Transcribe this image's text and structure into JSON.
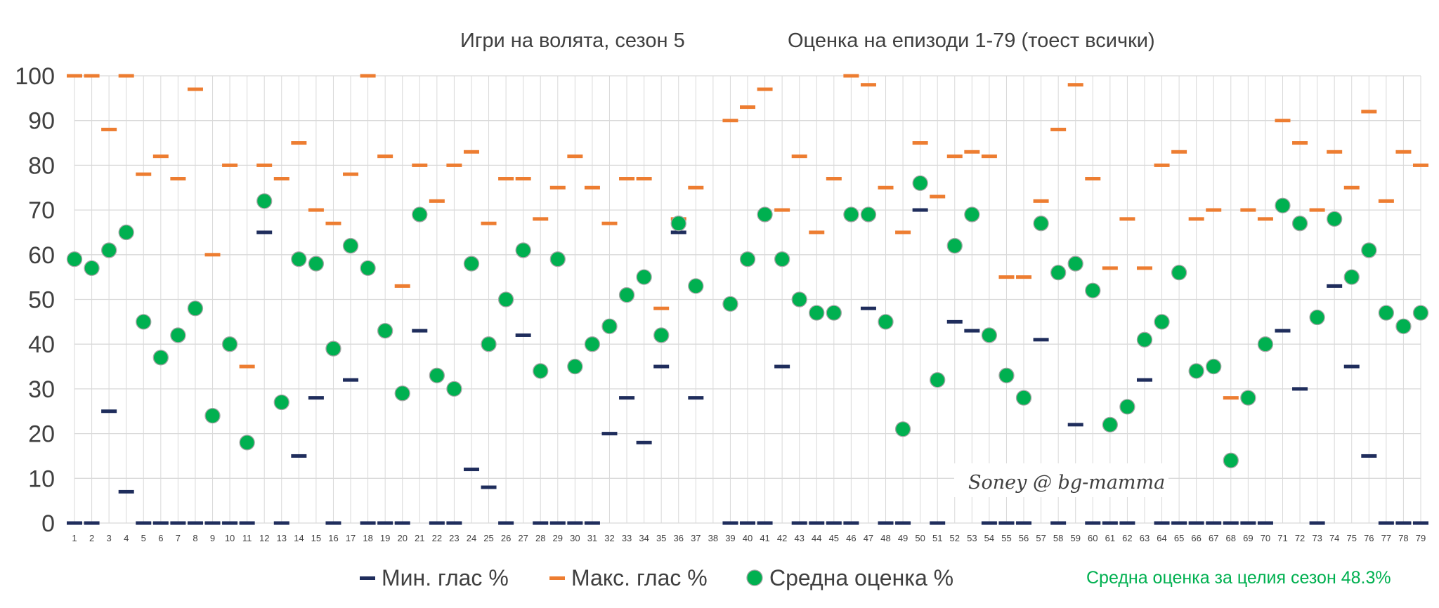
{
  "colors": {
    "min": "#1f2d5c",
    "max": "#ed7d31",
    "avg": "#00b050",
    "grid": "#d9d9d9",
    "text": "#404040",
    "season_note": "#00b050"
  },
  "chart_data": {
    "type": "scatter",
    "title_left": "Игри на волята, сезон 5",
    "title_right": "Оценка на епизоди 1-79 (тоест всички)",
    "ylim": [
      0,
      100
    ],
    "yticks": [
      0,
      10,
      20,
      30,
      40,
      50,
      60,
      70,
      80,
      90,
      100
    ],
    "grid": true,
    "legend_position": "bottom",
    "x": [
      1,
      2,
      3,
      4,
      5,
      6,
      7,
      8,
      9,
      10,
      11,
      12,
      13,
      14,
      15,
      16,
      17,
      18,
      19,
      20,
      21,
      22,
      23,
      24,
      25,
      26,
      27,
      28,
      29,
      30,
      31,
      32,
      33,
      34,
      35,
      36,
      37,
      38,
      39,
      40,
      41,
      42,
      43,
      44,
      45,
      46,
      47,
      48,
      49,
      50,
      51,
      52,
      53,
      54,
      55,
      56,
      57,
      58,
      59,
      60,
      61,
      62,
      63,
      64,
      65,
      66,
      67,
      68,
      69,
      70,
      71,
      72,
      73,
      74,
      75,
      76,
      77,
      78,
      79
    ],
    "series": [
      {
        "name": "Мин. глас %",
        "marker": "dash",
        "values": [
          0,
          0,
          25,
          7,
          0,
          0,
          0,
          0,
          0,
          0,
          0,
          65,
          0,
          15,
          28,
          0,
          32,
          0,
          0,
          0,
          43,
          0,
          0,
          12,
          8,
          0,
          42,
          0,
          0,
          0,
          0,
          20,
          28,
          18,
          35,
          65,
          28,
          null,
          0,
          0,
          0,
          35,
          0,
          0,
          0,
          0,
          48,
          0,
          0,
          70,
          0,
          45,
          43,
          0,
          0,
          0,
          41,
          0,
          22,
          0,
          0,
          0,
          32,
          0,
          0,
          0,
          0,
          0,
          0,
          0,
          43,
          30,
          0,
          53,
          35,
          15,
          0,
          0,
          0
        ]
      },
      {
        "name": "Макс. глас %",
        "marker": "dash",
        "values": [
          100,
          100,
          88,
          100,
          78,
          82,
          77,
          97,
          60,
          80,
          35,
          80,
          77,
          85,
          70,
          67,
          78,
          100,
          82,
          53,
          80,
          72,
          80,
          83,
          67,
          77,
          77,
          68,
          75,
          82,
          75,
          67,
          77,
          77,
          48,
          68,
          75,
          null,
          90,
          93,
          97,
          70,
          82,
          65,
          77,
          100,
          98,
          75,
          65,
          85,
          73,
          82,
          83,
          82,
          55,
          55,
          72,
          88,
          98,
          77,
          57,
          68,
          57,
          80,
          83,
          68,
          70,
          28,
          70,
          68,
          90,
          85,
          70,
          83,
          75,
          92,
          72,
          83,
          80
        ]
      },
      {
        "name": "Средна оценка %",
        "marker": "circle",
        "values": [
          59,
          57,
          61,
          65,
          45,
          37,
          42,
          48,
          24,
          40,
          18,
          72,
          27,
          59,
          58,
          39,
          62,
          57,
          43,
          29,
          69,
          33,
          30,
          58,
          40,
          50,
          61,
          34,
          59,
          35,
          40,
          44,
          51,
          55,
          42,
          67,
          53,
          null,
          49,
          59,
          69,
          59,
          50,
          47,
          47,
          69,
          69,
          45,
          21,
          76,
          32,
          62,
          69,
          42,
          33,
          28,
          67,
          56,
          58,
          52,
          22,
          26,
          41,
          45,
          56,
          34,
          35,
          14,
          28,
          40,
          71,
          67,
          46,
          68,
          55,
          61,
          47,
          44,
          47
        ]
      }
    ],
    "season_average_text": "Средна оценка за целия сезон 48.3%",
    "watermark": "Soney @ bg-mamma"
  }
}
